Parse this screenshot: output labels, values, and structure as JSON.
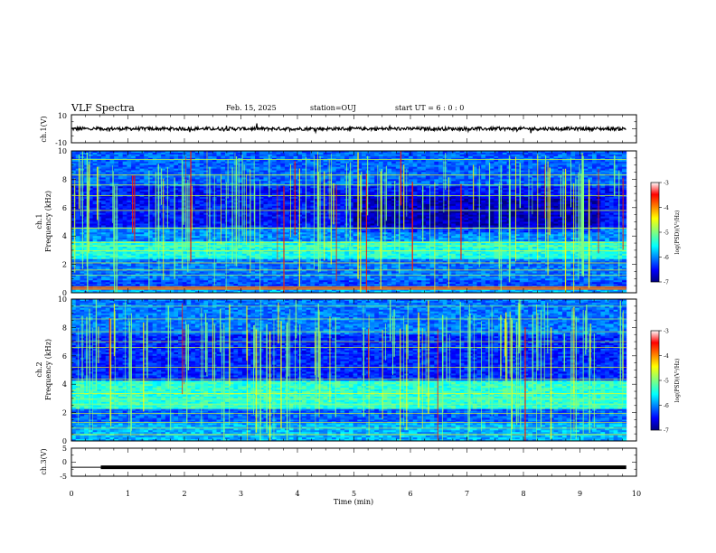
{
  "header": {
    "title": "VLF Spectra",
    "date": "Feb. 15, 2025",
    "station": "station=OUJ",
    "start": "start  UT  =   6  : 0  : 0"
  },
  "chart_data": [
    {
      "type": "line",
      "panel": "ch1-waveform",
      "ylabel": "ch.1(V)",
      "ylim": [
        -10,
        10
      ],
      "y_ticks": [
        "10",
        "-10"
      ],
      "xlim": [
        0,
        10
      ],
      "trace_level": 0,
      "data_end_min": 9.82,
      "color": "#000000"
    },
    {
      "type": "heatmap",
      "panel": "ch1-spectrogram",
      "ylabel_top": "ch.1",
      "ylabel": "Frequency (kHz)",
      "ylim": [
        0,
        10
      ],
      "y_ticks": [
        "0",
        "2",
        "4",
        "6",
        "8",
        "10"
      ],
      "xlim": [
        0,
        10
      ],
      "data_end_min": 9.82,
      "colorbar": {
        "label": "log(PSD)(V²/Hz)",
        "range": [
          -7,
          -3
        ],
        "ticks": [
          "-3",
          "-4",
          "-5",
          "-6",
          "-7"
        ]
      }
    },
    {
      "type": "heatmap",
      "panel": "ch2-spectrogram",
      "ylabel_top": "ch.2",
      "ylabel": "Frequency (kHz)",
      "ylim": [
        0,
        10
      ],
      "y_ticks": [
        "0",
        "2",
        "4",
        "6",
        "8",
        "10"
      ],
      "xlim": [
        0,
        10
      ],
      "data_end_min": 9.82,
      "colorbar": {
        "label": "log(PSD)(V²/Hz)",
        "range": [
          -7,
          -3
        ],
        "ticks": [
          "-3",
          "-4",
          "-5",
          "-6",
          "-7"
        ]
      }
    },
    {
      "type": "line",
      "panel": "ch3-waveform",
      "ylabel": "ch.3(V)",
      "ylim": [
        -5,
        5
      ],
      "y_ticks": [
        "5",
        "0",
        "-5"
      ],
      "xlim": [
        0,
        10
      ],
      "x": [
        0,
        0.52,
        0.53,
        9.82
      ],
      "y": [
        -1.8,
        -1.8,
        -1.8,
        -1.8
      ],
      "thin_until_min": 0.52,
      "data_end_min": 9.82,
      "color": "#000000"
    }
  ],
  "x_axis": {
    "label": "Time (min)",
    "ticks": [
      "0",
      "1",
      "2",
      "3",
      "4",
      "5",
      "6",
      "7",
      "8",
      "9",
      "10"
    ]
  },
  "colors": {
    "jet": [
      "#00007f",
      "#0000ff",
      "#0080ff",
      "#00ffff",
      "#80ff80",
      "#ffff00",
      "#ff8000",
      "#ff0000",
      "#7f0000"
    ]
  }
}
